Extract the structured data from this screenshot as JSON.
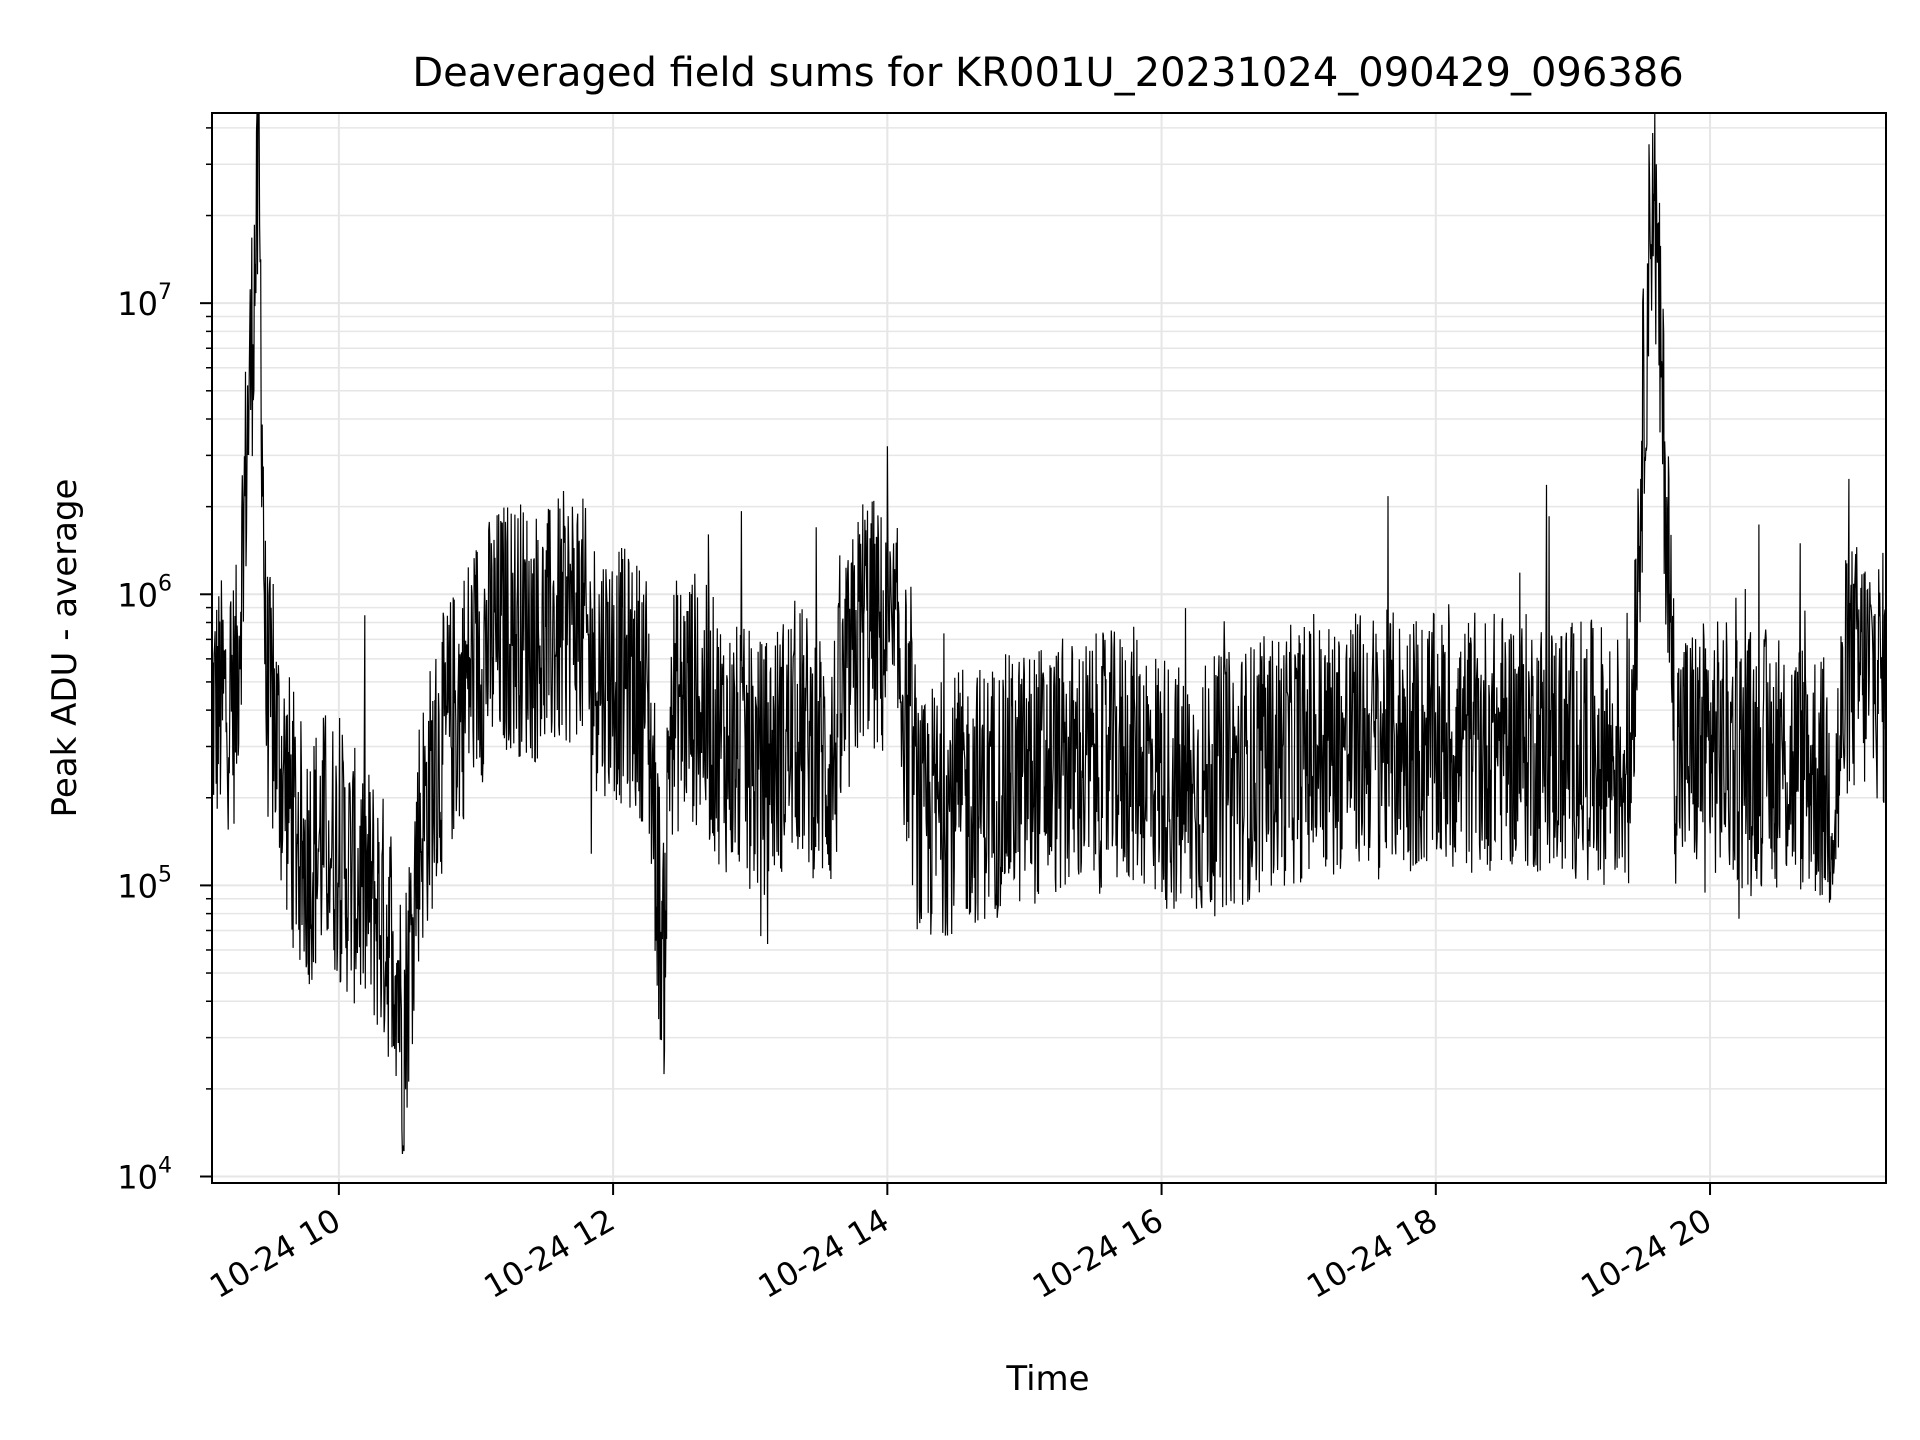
{
  "chart_data": {
    "type": "line",
    "title": "Deaveraged field sums for KR001U_20231024_090429_096386",
    "xlabel": "Time",
    "ylabel": "Peak ADU - average",
    "y_scale": "log",
    "ylim": [
      9500,
      45000000
    ],
    "xlim": [
      "2023-10-24 09:04:29",
      "2023-10-24 21:17:00"
    ],
    "grid": true,
    "line_color": "#000000",
    "grid_color": "#e6e6e6",
    "x_ticks": [
      {
        "value": "2023-10-24 10:00",
        "label": "10-24 10"
      },
      {
        "value": "2023-10-24 12:00",
        "label": "10-24 12"
      },
      {
        "value": "2023-10-24 14:00",
        "label": "10-24 14"
      },
      {
        "value": "2023-10-24 16:00",
        "label": "10-24 16"
      },
      {
        "value": "2023-10-24 18:00",
        "label": "10-24 18"
      },
      {
        "value": "2023-10-24 20:00",
        "label": "10-24 20"
      }
    ],
    "y_ticks": [
      {
        "value": 10000,
        "base": "10",
        "exp": "4"
      },
      {
        "value": 100000,
        "base": "10",
        "exp": "5"
      },
      {
        "value": 1000000,
        "base": "10",
        "exp": "6"
      },
      {
        "value": 10000000,
        "base": "10",
        "exp": "7"
      }
    ],
    "series": [
      {
        "x": [
          "2023-10-24 09:04:29",
          "2023-10-24 09:15",
          "2023-10-24 09:25",
          "2023-10-24 09:28",
          "2023-10-24 09:35",
          "2023-10-24 09:45",
          "2023-10-24 09:55",
          "2023-10-24 10:05",
          "2023-10-24 10:15",
          "2023-10-24 10:25",
          "2023-10-24 10:28",
          "2023-10-24 10:35",
          "2023-10-24 10:45",
          "2023-10-24 11:00",
          "2023-10-24 11:15",
          "2023-10-24 11:30",
          "2023-10-24 11:45",
          "2023-10-24 11:50",
          "2023-10-24 12:00",
          "2023-10-24 12:15",
          "2023-10-24 12:22",
          "2023-10-24 12:25",
          "2023-10-24 12:35",
          "2023-10-24 12:50",
          "2023-10-24 13:05",
          "2023-10-24 13:20",
          "2023-10-24 13:35",
          "2023-10-24 13:50",
          "2023-10-24 13:55",
          "2023-10-24 14:05",
          "2023-10-24 14:15",
          "2023-10-24 14:20",
          "2023-10-24 14:35",
          "2023-10-24 14:50",
          "2023-10-24 15:10",
          "2023-10-24 15:30",
          "2023-10-24 15:50",
          "2023-10-24 16:10",
          "2023-10-24 16:30",
          "2023-10-24 16:50",
          "2023-10-24 17:10",
          "2023-10-24 17:30",
          "2023-10-24 17:50",
          "2023-10-24 18:10",
          "2023-10-24 18:30",
          "2023-10-24 18:50",
          "2023-10-24 19:10",
          "2023-10-24 19:25",
          "2023-10-24 19:35",
          "2023-10-24 19:45",
          "2023-10-24 20:00",
          "2023-10-24 20:15",
          "2023-10-24 20:30",
          "2023-10-24 20:45",
          "2023-10-24 20:55",
          "2023-10-24 21:00",
          "2023-10-24 21:10",
          "2023-10-24 21:17"
        ],
        "y": [
          400000,
          450000,
          27000000,
          500000,
          250000,
          120000,
          150000,
          110000,
          90000,
          60000,
          30000,
          150000,
          300000,
          600000,
          800000,
          700000,
          900000,
          600000,
          550000,
          450000,
          50000,
          400000,
          450000,
          300000,
          250000,
          350000,
          250000,
          900000,
          750000,
          600000,
          150000,
          180000,
          200000,
          220000,
          250000,
          260000,
          280000,
          200000,
          230000,
          270000,
          300000,
          320000,
          310000,
          300000,
          320000,
          300000,
          290000,
          260000,
          31000000,
          280000,
          300000,
          280000,
          270000,
          250000,
          200000,
          550000,
          550000,
          500000
        ]
      }
    ]
  }
}
